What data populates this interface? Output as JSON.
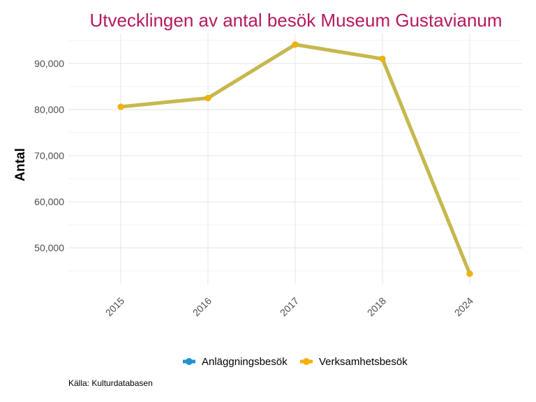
{
  "chart_data": {
    "type": "line",
    "title": "Utvecklingen av antal besök Museum Gustavianum",
    "xlabel": "",
    "ylabel": "Antal",
    "categories": [
      "2015",
      "2016",
      "2017",
      "2018",
      "2024"
    ],
    "series": [
      {
        "name": "Anläggningsbesök",
        "color": "#1f93cf",
        "values": [
          80600,
          82500,
          94100,
          91000,
          44400
        ]
      },
      {
        "name": "Verksamhetsbesök",
        "color": "#f6b100",
        "values": [
          80600,
          82500,
          94100,
          91000,
          44400
        ]
      }
    ],
    "line_color": "#c6b84e",
    "ylim": [
      42000,
      96500
    ],
    "yticks": [
      50000,
      60000,
      70000,
      80000,
      90000
    ],
    "ytick_labels": [
      "50,000",
      "60,000",
      "70,000",
      "80,000",
      "90,000"
    ],
    "grid": true,
    "legend_position": "bottom",
    "caption": "Källa: Kulturdatabasen",
    "title_color": "#b5195f"
  }
}
